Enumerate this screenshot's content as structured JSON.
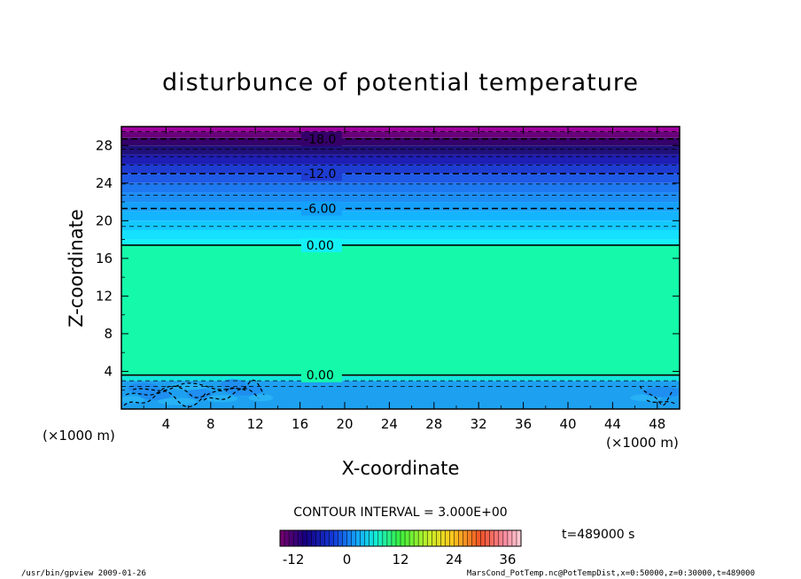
{
  "chart_data": {
    "type": "contour",
    "title": "disturbunce of potential temperature",
    "xlabel": "X-coordinate",
    "ylabel": "Z-coordinate",
    "x_unit": "(×1000 m)",
    "z_unit": "(×1000 m)",
    "xlim": [
      0,
      50
    ],
    "ylim": [
      0,
      30
    ],
    "x_ticks": [
      "4",
      "8",
      "12",
      "16",
      "20",
      "24",
      "28",
      "32",
      "36",
      "40",
      "44",
      "48"
    ],
    "y_ticks": [
      "4",
      "8",
      "12",
      "16",
      "20",
      "24",
      "28"
    ],
    "contour_interval_text": "CONTOUR INTERVAL = 3.000E+00",
    "time_text": "t=489000 s",
    "contour_labels": [
      {
        "text": "-18.0",
        "z": 28.7
      },
      {
        "text": "-12.0",
        "z": 25.0
      },
      {
        "text": "-6.00",
        "z": 21.3
      },
      {
        "text": "0.00",
        "z": 17.4
      },
      {
        "text": "0.00",
        "z": 3.6
      }
    ],
    "colorbar": {
      "range": [
        -15,
        39
      ],
      "tick_labels": [
        "-12",
        "0",
        "12",
        "24",
        "36"
      ],
      "tick_values": [
        -12,
        0,
        12,
        24,
        36
      ]
    },
    "bands": [
      {
        "z0": 29.5,
        "z1": 30.0,
        "color": "#a000a0"
      },
      {
        "z0": 28.8,
        "z1": 29.5,
        "color": "#6a007a"
      },
      {
        "z0": 28.0,
        "z1": 28.8,
        "color": "#35006a"
      },
      {
        "z0": 27.0,
        "z1": 28.0,
        "color": "#20107a"
      },
      {
        "z0": 26.0,
        "z1": 27.0,
        "color": "#1e1eb4"
      },
      {
        "z0": 25.0,
        "z1": 26.0,
        "color": "#1e3cd2"
      },
      {
        "z0": 24.0,
        "z1": 25.0,
        "color": "#1e5ae6"
      },
      {
        "z0": 23.0,
        "z1": 24.0,
        "color": "#1e78f0"
      },
      {
        "z0": 22.0,
        "z1": 23.0,
        "color": "#1e8cf5"
      },
      {
        "z0": 21.0,
        "z1": 22.0,
        "color": "#14a0fa"
      },
      {
        "z0": 20.0,
        "z1": 21.0,
        "color": "#14b4ff"
      },
      {
        "z0": 19.0,
        "z1": 20.0,
        "color": "#14c8ff"
      },
      {
        "z0": 18.0,
        "z1": 19.0,
        "color": "#14e0ff"
      },
      {
        "z0": 17.4,
        "z1": 18.0,
        "color": "#14f0f5"
      },
      {
        "z0": 3.5,
        "z1": 17.4,
        "color": "#14faaa"
      },
      {
        "z0": 3.0,
        "z1": 3.5,
        "color": "#14e6dc"
      },
      {
        "z0": 0.0,
        "z1": 3.0,
        "color": "#1ea0f0"
      }
    ],
    "contour_lines": [
      {
        "z": 29.5,
        "style": "dashed",
        "weight": "thin"
      },
      {
        "z": 28.7,
        "style": "dashed",
        "weight": "thick"
      },
      {
        "z": 27.6,
        "style": "dashed",
        "weight": "thin"
      },
      {
        "z": 26.8,
        "style": "dashed",
        "weight": "thin"
      },
      {
        "z": 25.9,
        "style": "dashed",
        "weight": "thin"
      },
      {
        "z": 25.0,
        "style": "dashed",
        "weight": "thick"
      },
      {
        "z": 23.9,
        "style": "dashed",
        "weight": "thin"
      },
      {
        "z": 22.7,
        "style": "dashed",
        "weight": "thin"
      },
      {
        "z": 21.3,
        "style": "dashed",
        "weight": "thick"
      },
      {
        "z": 19.4,
        "style": "dashed",
        "weight": "thin"
      },
      {
        "z": 17.4,
        "style": "solid",
        "weight": "thick"
      },
      {
        "z": 3.6,
        "style": "solid",
        "weight": "thick"
      },
      {
        "z": 3.0,
        "style": "dashed",
        "weight": "thin"
      },
      {
        "z": 2.4,
        "style": "dashed",
        "weight": "thin"
      }
    ]
  },
  "footer": {
    "left": "/usr/bin/gpview  2009-01-26",
    "right": "MarsCond_PotTemp.nc@PotTempDist,x=0:50000,z=0:30000,t=489000"
  }
}
